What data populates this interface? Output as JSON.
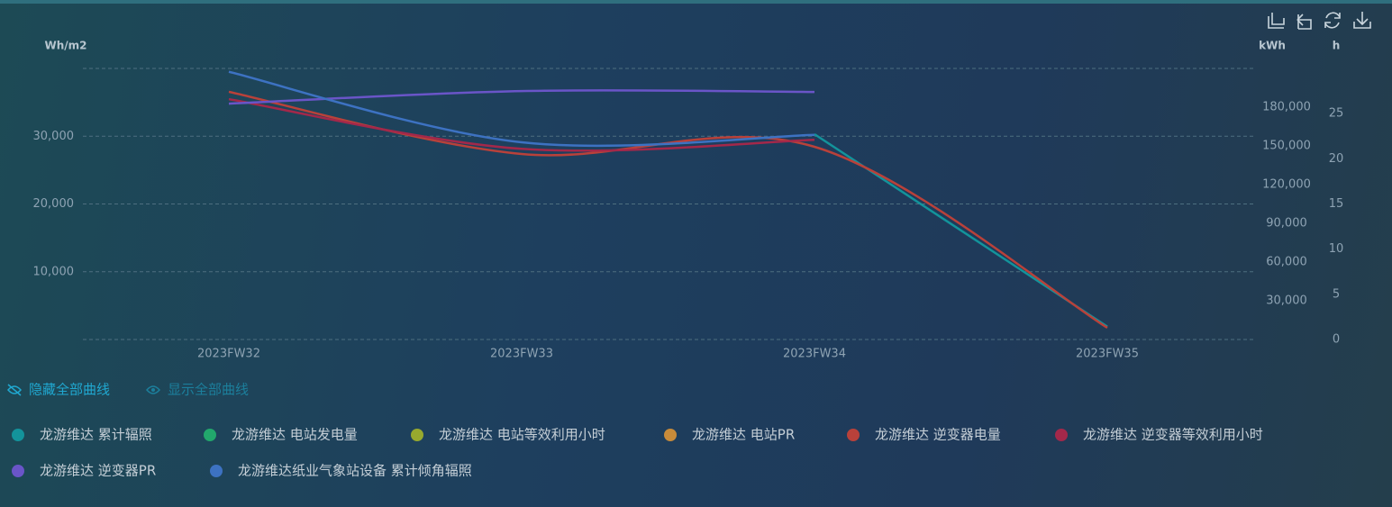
{
  "chart_data": {
    "type": "line",
    "categories": [
      "2023FW32",
      "2023FW33",
      "2023FW34",
      "2023FW35"
    ],
    "ylabel": "Wh/m2",
    "y2label": "kWh",
    "y3label": "h",
    "ylim": [
      0,
      40000
    ],
    "yticks": [
      {
        "value": 10000,
        "label": "10,000"
      },
      {
        "value": 20000,
        "label": "20,000"
      },
      {
        "value": 30000,
        "label": "30,000"
      }
    ],
    "y2lim": [
      0,
      210000
    ],
    "y2ticks": [
      {
        "value": 30000,
        "label": "30,000"
      },
      {
        "value": 60000,
        "label": "60,000"
      },
      {
        "value": 90000,
        "label": "90,000"
      },
      {
        "value": 120000,
        "label": "120,000"
      },
      {
        "value": 150000,
        "label": "150,000"
      },
      {
        "value": 180000,
        "label": "180,000"
      }
    ],
    "y3lim": [
      0,
      30
    ],
    "y3ticks": [
      0,
      5,
      10,
      15,
      20,
      25
    ],
    "grid": true,
    "controls": [
      "隐藏全部曲线",
      "显示全部曲线"
    ],
    "series": [
      {
        "name": "龙游维达 累计辐照",
        "color": "#13939b",
        "axis": "y",
        "values": [
          null,
          null,
          30300,
          1900
        ]
      },
      {
        "name": "龙游维达 电站发电量",
        "color": "#22a86c",
        "axis": "y2",
        "values": [
          null,
          null,
          null,
          null
        ]
      },
      {
        "name": "龙游维达 电站等效利用小时",
        "color": "#97a92e",
        "axis": "y3",
        "values": [
          null,
          null,
          null,
          null
        ]
      },
      {
        "name": "龙游维达 电站PR",
        "color": "#c88b3a",
        "axis": "y3",
        "values": [
          null,
          null,
          null,
          null
        ]
      },
      {
        "name": "龙游维达 逆变器电量",
        "color": "#b9413a",
        "axis": "y2",
        "values": [
          191900,
          143700,
          149300,
          9100
        ]
      },
      {
        "name": "龙游维达 逆变器等效利用小时",
        "color": "#a3284a",
        "axis": "y3",
        "values": [
          26.6,
          21.1,
          22.1,
          null
        ]
      },
      {
        "name": "龙游维达 逆变器PR",
        "color": "#6a55c8",
        "axis": "y3",
        "values": [
          26.1,
          27.5,
          27.4,
          null
        ]
      },
      {
        "name": "龙游维达纸业气象站设备 累计倾角辐照",
        "color": "#3d72c2",
        "axis": "y",
        "values": [
          39500,
          29100,
          30200,
          null
        ]
      }
    ]
  }
}
